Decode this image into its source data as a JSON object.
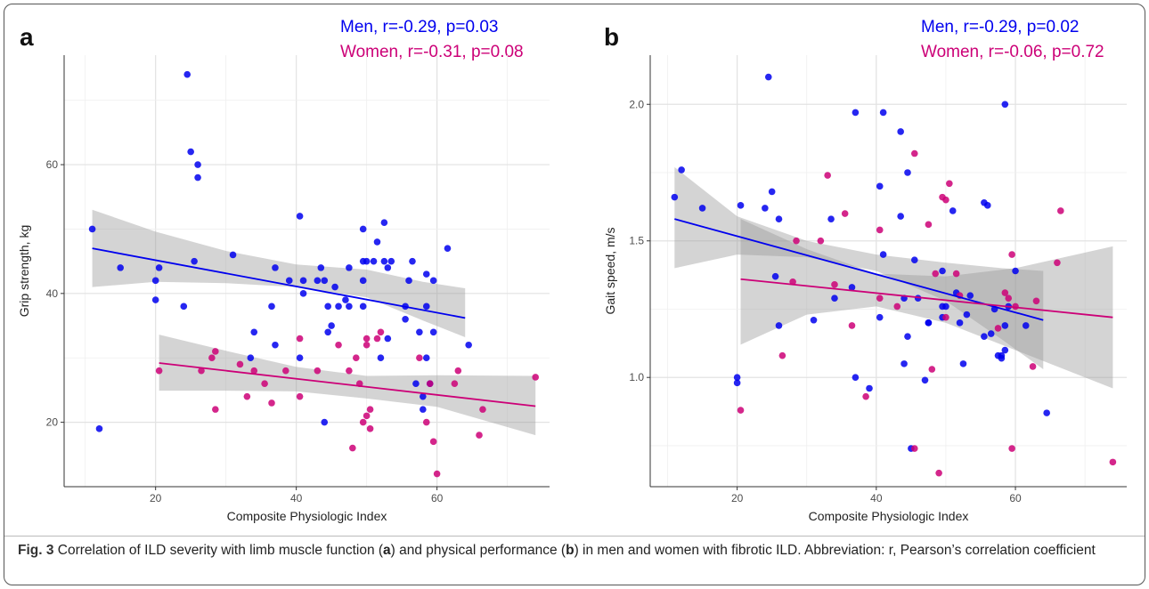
{
  "panels": [
    {
      "letter": "a",
      "stats": {
        "men": "Men, r=-0.29, p=0.03",
        "women": "Women, r=-0.31, p=0.08"
      }
    },
    {
      "letter": "b",
      "stats": {
        "men": "Men, r=-0.29, p=0.02",
        "women": "Women, r=-0.06, p=0.72"
      }
    }
  ],
  "caption": {
    "label": "Fig. 3",
    "text_1": " Correlation of ILD severity with limb muscle function (",
    "a": "a",
    "text_2": ") and physical performance (",
    "b": "b",
    "text_3": ") in men and women with fibrotic ILD. Abbreviation: r, Pearson’s correlation coefficient"
  },
  "colors": {
    "men": "#0000ee",
    "women": "#cc0077",
    "band": "#c8c8c8"
  },
  "chart_data": [
    {
      "type": "scatter",
      "xlabel": "Composite Physiologic Index",
      "ylabel": "Grip strength, kg",
      "xlim": [
        7,
        76
      ],
      "ylim": [
        10,
        77
      ],
      "xticks": [
        20,
        40,
        60
      ],
      "yticks": [
        20,
        40,
        60
      ],
      "grid": true,
      "series": [
        {
          "name": "Men",
          "points": [
            [
              11,
              50
            ],
            [
              12,
              19
            ],
            [
              15,
              44
            ],
            [
              20,
              39
            ],
            [
              20,
              42
            ],
            [
              20.5,
              44
            ],
            [
              24,
              38
            ],
            [
              24.5,
              74
            ],
            [
              25,
              62
            ],
            [
              25.5,
              45
            ],
            [
              26,
              60
            ],
            [
              26,
              58
            ],
            [
              31,
              46
            ],
            [
              33.5,
              30
            ],
            [
              34,
              34
            ],
            [
              36.5,
              38
            ],
            [
              37,
              32
            ],
            [
              37,
              44
            ],
            [
              39,
              42
            ],
            [
              40.5,
              30
            ],
            [
              40.5,
              52
            ],
            [
              41,
              42
            ],
            [
              41,
              40
            ],
            [
              43.5,
              44
            ],
            [
              43,
              42
            ],
            [
              44,
              42
            ],
            [
              44,
              20
            ],
            [
              44.5,
              38
            ],
            [
              44.5,
              34
            ],
            [
              45,
              35
            ],
            [
              45.5,
              41
            ],
            [
              46,
              38
            ],
            [
              47,
              39
            ],
            [
              47.5,
              44
            ],
            [
              47.5,
              38
            ],
            [
              49.5,
              42
            ],
            [
              49.5,
              38
            ],
            [
              49.5,
              50
            ],
            [
              49.5,
              45
            ],
            [
              50,
              45
            ],
            [
              51,
              45
            ],
            [
              51.5,
              48
            ],
            [
              52,
              30
            ],
            [
              52.5,
              51
            ],
            [
              52.5,
              45
            ],
            [
              53,
              33
            ],
            [
              53,
              44
            ],
            [
              53.5,
              45
            ],
            [
              55.5,
              36
            ],
            [
              55.5,
              38
            ],
            [
              56,
              42
            ],
            [
              56.5,
              45
            ],
            [
              57,
              26
            ],
            [
              57.5,
              34
            ],
            [
              58,
              22
            ],
            [
              58,
              24
            ],
            [
              58.5,
              30
            ],
            [
              58.5,
              38
            ],
            [
              58.5,
              43
            ],
            [
              59,
              26
            ],
            [
              59.5,
              34
            ],
            [
              59.5,
              42
            ],
            [
              61.5,
              47
            ],
            [
              64.5,
              32
            ]
          ],
          "fit": {
            "x": [
              11,
              64
            ],
            "y": [
              47,
              36.2
            ]
          },
          "ci": {
            "x": [
              11,
              20,
              30,
              40,
              50,
              58,
              64
            ],
            "lower": [
              41,
              41.8,
              41.6,
              41,
              39.4,
              35.8,
              33.2
            ],
            "upper": [
              53,
              49.6,
              46.6,
              44.5,
              43.7,
              41.8,
              40.8
            ]
          }
        },
        {
          "name": "Women",
          "points": [
            [
              20.5,
              28
            ],
            [
              26.5,
              28
            ],
            [
              28,
              30
            ],
            [
              28.5,
              31
            ],
            [
              28.5,
              22
            ],
            [
              32,
              29
            ],
            [
              33,
              24
            ],
            [
              34,
              28
            ],
            [
              35.5,
              26
            ],
            [
              36.5,
              23
            ],
            [
              38.5,
              28
            ],
            [
              40.5,
              24
            ],
            [
              40.5,
              33
            ],
            [
              43,
              28
            ],
            [
              46,
              32
            ],
            [
              47.5,
              28
            ],
            [
              48,
              16
            ],
            [
              48.5,
              30
            ],
            [
              49,
              26
            ],
            [
              49.5,
              20
            ],
            [
              50,
              21
            ],
            [
              50,
              32
            ],
            [
              50,
              33
            ],
            [
              50.5,
              19
            ],
            [
              50.5,
              22
            ],
            [
              51.5,
              33
            ],
            [
              52,
              34
            ],
            [
              57.5,
              30
            ],
            [
              58.5,
              20
            ],
            [
              59,
              26
            ],
            [
              59.5,
              17
            ],
            [
              60,
              12
            ],
            [
              62.5,
              26
            ],
            [
              63,
              28
            ],
            [
              66,
              18
            ],
            [
              66.5,
              22
            ],
            [
              74,
              27
            ]
          ],
          "fit": {
            "x": [
              20.5,
              74
            ],
            "y": [
              29.2,
              22.5
            ]
          },
          "ci": {
            "x": [
              20.5,
              30,
              40,
              50,
              60,
              74
            ],
            "lower": [
              24.9,
              24.9,
              24.8,
              23.7,
              22.4,
              18.0
            ],
            "upper": [
              33.6,
              31.1,
              28.6,
              27.2,
              27.3,
              27.2
            ]
          }
        }
      ]
    },
    {
      "type": "scatter",
      "xlabel": "Composite Physiologic Index",
      "ylabel": "Gait speed, m/s",
      "xlim": [
        7.5,
        76
      ],
      "ylim": [
        0.6,
        2.18
      ],
      "xticks": [
        20,
        40,
        60
      ],
      "yticks": [
        1.0,
        1.5,
        2.0
      ],
      "grid": true,
      "series": [
        {
          "name": "Men",
          "points": [
            [
              11,
              1.66
            ],
            [
              12,
              1.76
            ],
            [
              15,
              1.62
            ],
            [
              20,
              0.98
            ],
            [
              20,
              1.0
            ],
            [
              20.5,
              1.63
            ],
            [
              24,
              1.62
            ],
            [
              24.5,
              2.1
            ],
            [
              25,
              1.68
            ],
            [
              25.5,
              1.37
            ],
            [
              26,
              1.58
            ],
            [
              26,
              1.19
            ],
            [
              31,
              1.21
            ],
            [
              33.5,
              1.58
            ],
            [
              34,
              1.29
            ],
            [
              36.5,
              1.33
            ],
            [
              37,
              1.0
            ],
            [
              37,
              1.97
            ],
            [
              39,
              0.96
            ],
            [
              40.5,
              1.22
            ],
            [
              40.5,
              1.7
            ],
            [
              41,
              1.45
            ],
            [
              41,
              1.97
            ],
            [
              43.5,
              1.9
            ],
            [
              43.5,
              1.59
            ],
            [
              44,
              1.05
            ],
            [
              44,
              1.29
            ],
            [
              44.5,
              1.15
            ],
            [
              44.5,
              1.75
            ],
            [
              45,
              0.74
            ],
            [
              45.5,
              1.43
            ],
            [
              46,
              1.29
            ],
            [
              47,
              0.99
            ],
            [
              47.5,
              1.2
            ],
            [
              47.5,
              1.2
            ],
            [
              49.5,
              1.22
            ],
            [
              49.5,
              1.39
            ],
            [
              49.5,
              1.26
            ],
            [
              50,
              1.26
            ],
            [
              51,
              1.61
            ],
            [
              51.5,
              1.31
            ],
            [
              52,
              1.2
            ],
            [
              52.5,
              1.05
            ],
            [
              53,
              1.23
            ],
            [
              53.5,
              1.3
            ],
            [
              55.5,
              1.64
            ],
            [
              55.5,
              1.15
            ],
            [
              56,
              1.63
            ],
            [
              56.5,
              1.16
            ],
            [
              57,
              1.25
            ],
            [
              57.5,
              1.08
            ],
            [
              58,
              1.08
            ],
            [
              58,
              1.07
            ],
            [
              58.5,
              1.1
            ],
            [
              58.5,
              1.19
            ],
            [
              58.5,
              2.0
            ],
            [
              59,
              1.26
            ],
            [
              60,
              1.39
            ],
            [
              61.5,
              1.19
            ],
            [
              64.5,
              0.87
            ]
          ],
          "fit": {
            "x": [
              11,
              64
            ],
            "y": [
              1.58,
              1.21
            ]
          },
          "ci": {
            "x": [
              11,
              20,
              30,
              40,
              50,
              58,
              64
            ],
            "lower": [
              1.4,
              1.45,
              1.44,
              1.39,
              1.28,
              1.14,
              1.03
            ],
            "upper": [
              1.77,
              1.59,
              1.5,
              1.45,
              1.42,
              1.4,
              1.39
            ]
          }
        },
        {
          "name": "Women",
          "points": [
            [
              20.5,
              0.88
            ],
            [
              26.5,
              1.08
            ],
            [
              28,
              1.35
            ],
            [
              28.5,
              1.5
            ],
            [
              32,
              1.5
            ],
            [
              33,
              1.74
            ],
            [
              34,
              1.34
            ],
            [
              35.5,
              1.6
            ],
            [
              36.5,
              1.19
            ],
            [
              38.5,
              0.93
            ],
            [
              40.5,
              1.29
            ],
            [
              40.5,
              1.54
            ],
            [
              43,
              1.26
            ],
            [
              45.5,
              1.82
            ],
            [
              45.5,
              0.74
            ],
            [
              47.5,
              1.56
            ],
            [
              48,
              1.03
            ],
            [
              48.5,
              1.38
            ],
            [
              49,
              0.65
            ],
            [
              49.5,
              1.66
            ],
            [
              50,
              1.22
            ],
            [
              50,
              1.65
            ],
            [
              50.5,
              1.71
            ],
            [
              51.5,
              1.38
            ],
            [
              52,
              1.3
            ],
            [
              57.5,
              1.18
            ],
            [
              58.5,
              1.31
            ],
            [
              59,
              1.29
            ],
            [
              59.5,
              1.45
            ],
            [
              59.5,
              0.74
            ],
            [
              60,
              1.26
            ],
            [
              62.5,
              1.04
            ],
            [
              63,
              1.28
            ],
            [
              66,
              1.42
            ],
            [
              66.5,
              1.61
            ],
            [
              74,
              0.69
            ]
          ],
          "fit": {
            "x": [
              20.5,
              74
            ],
            "y": [
              1.36,
              1.22
            ]
          },
          "ci": {
            "x": [
              20.5,
              30,
              40,
              50,
              60,
              74
            ],
            "lower": [
              1.12,
              1.23,
              1.26,
              1.2,
              1.1,
              0.96
            ],
            "upper": [
              1.58,
              1.47,
              1.38,
              1.37,
              1.4,
              1.48
            ]
          }
        }
      ]
    }
  ]
}
